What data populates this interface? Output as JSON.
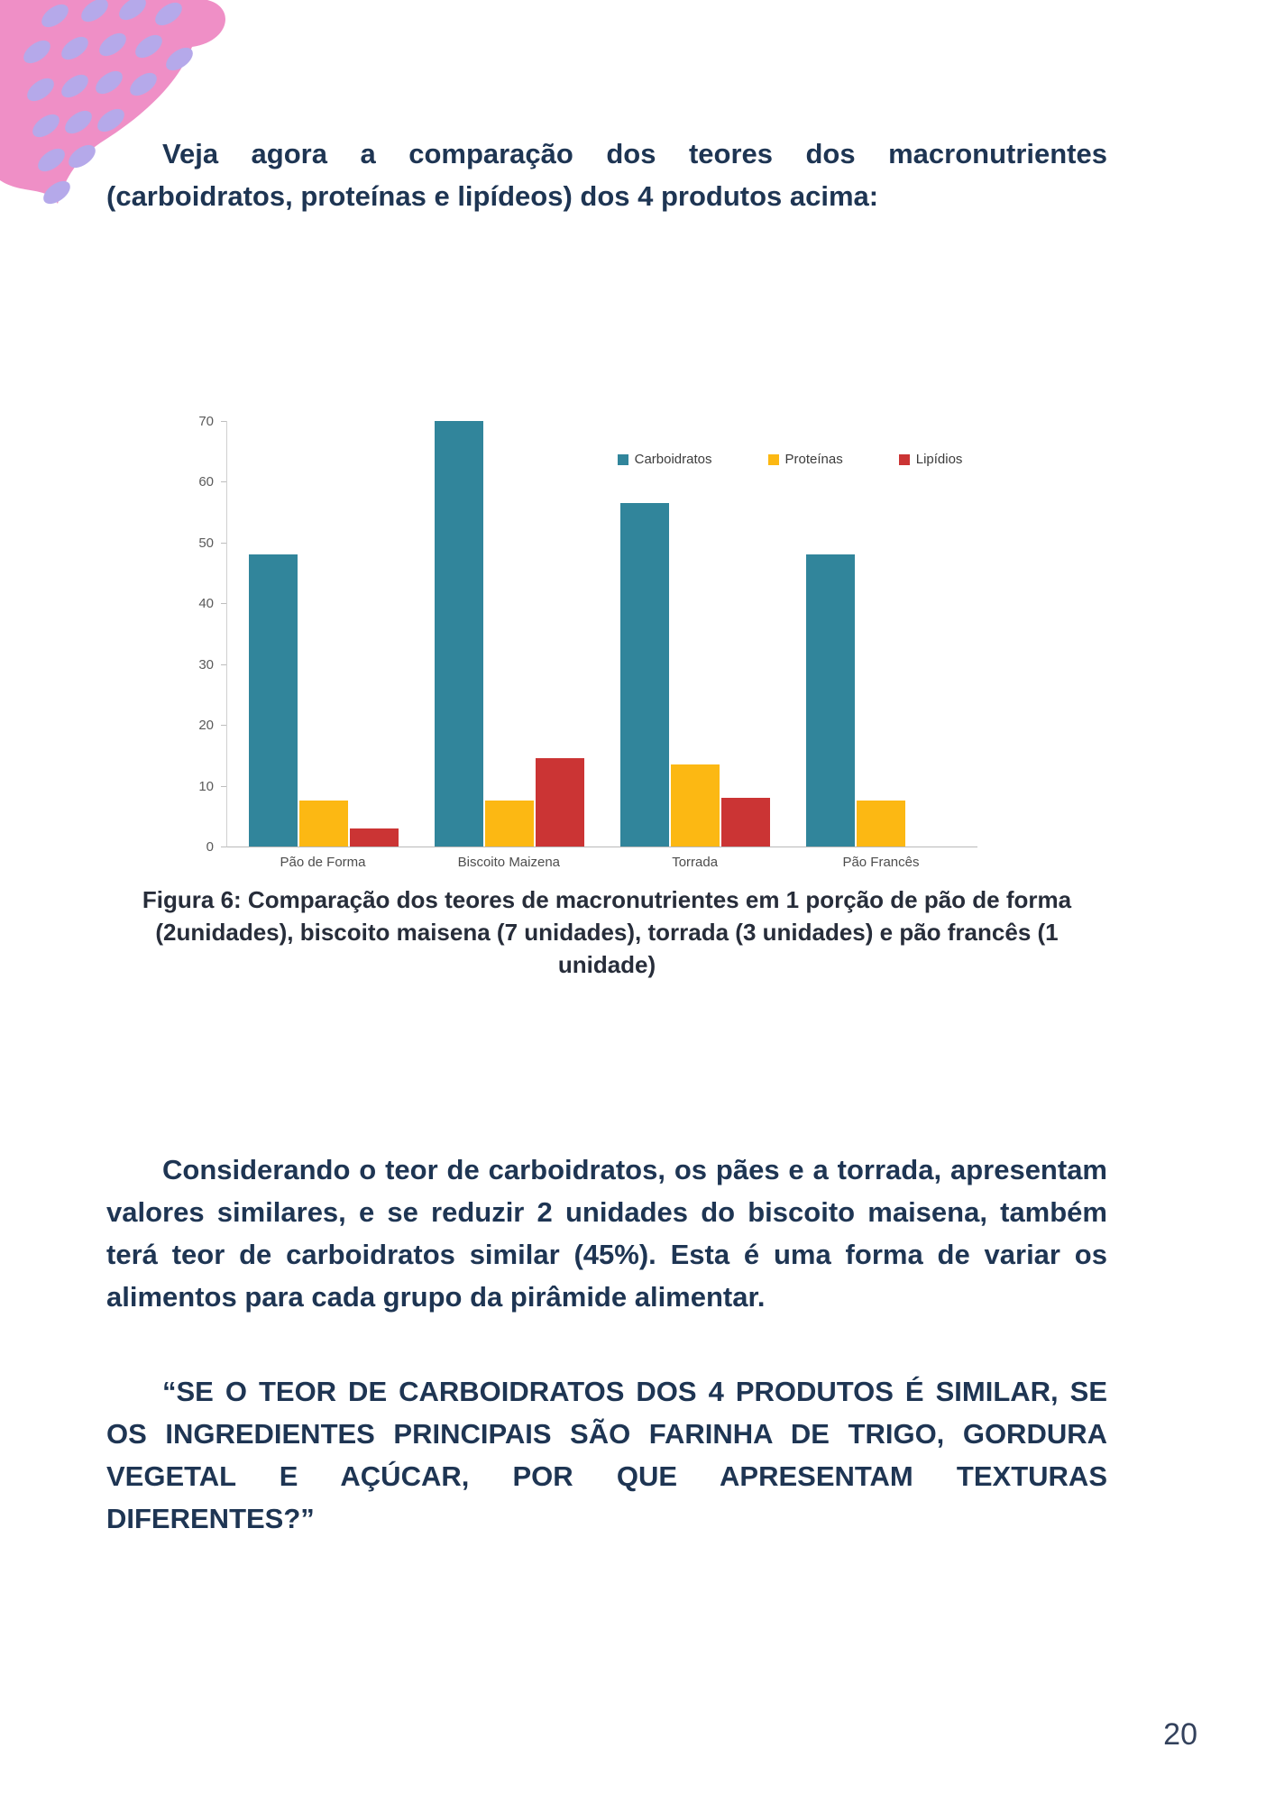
{
  "page": {
    "number": "20"
  },
  "colors": {
    "pink": "#ef8fc6",
    "lavender": "#b5a9ea",
    "body_text": "#1e3553",
    "caption_text": "#272d3a"
  },
  "intro": {
    "text": "Veja agora a comparação dos teores dos macronutrientes (carboidratos, proteínas e lipídeos) dos 4 produtos acima:"
  },
  "figure": {
    "caption": "Figura 6: Comparação dos teores de macronutrientes em 1 porção de pão de forma (2unidades), biscoito maisena (7 unidades), torrada (3 unidades) e pão francês (1 unidade)"
  },
  "chart_data": {
    "type": "bar",
    "title": "",
    "xlabel": "",
    "ylabel": "",
    "categories": [
      "Pão de Forma",
      "Biscoito Maizena",
      "Torrada",
      "Pão Francês"
    ],
    "series": [
      {
        "name": "Carboidratos",
        "color": "#31859b",
        "values": [
          48,
          70,
          56.5,
          48
        ]
      },
      {
        "name": "Proteínas",
        "color": "#fcb813",
        "values": [
          7.5,
          7.5,
          13.5,
          7.5
        ]
      },
      {
        "name": "Lipídios",
        "color": "#cb3434",
        "values": [
          3,
          14.5,
          8,
          0
        ]
      }
    ],
    "ylim": [
      0,
      70
    ],
    "ytick_step": 10,
    "grid": false,
    "legend_position": "top-right-inside"
  },
  "paragraphs": {
    "analysis": "Considerando o teor de carboidratos, os pães e a torrada, apresentam valores similares, e se reduzir 2 unidades do biscoito maisena, também terá teor de carboidratos similar (45%). Esta é uma forma de variar os alimentos para cada grupo da pirâmide alimentar.",
    "question": "“SE O TEOR DE CARBOIDRATOS DOS 4 PRODUTOS É SIMILAR, SE OS INGREDIENTES PRINCIPAIS SÃO FARINHA DE TRIGO, GORDURA VEGETAL E AÇÚCAR, POR QUE APRESENTAM TEXTURAS DIFERENTES?”"
  }
}
